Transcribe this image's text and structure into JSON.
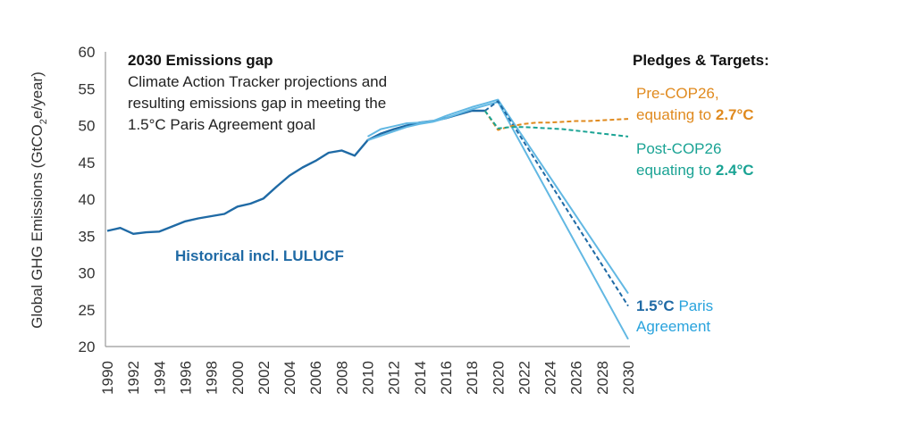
{
  "chart_data": {
    "type": "line",
    "title": "2030 Emissions gap",
    "subtitle": [
      "Climate Action Tracker projections and",
      "resulting emissions gap in meeting the",
      "1.5°C Paris Agreement goal"
    ],
    "ylabel": {
      "main": "Global GHG Emissions (GtCO",
      "sub": "2",
      "tail": "e/year)"
    },
    "xlim": [
      1990,
      2030
    ],
    "ylim": [
      20,
      60
    ],
    "x_ticks": [
      1990,
      1992,
      1994,
      1996,
      1998,
      2000,
      2002,
      2004,
      2006,
      2008,
      2010,
      2012,
      2014,
      2016,
      2018,
      2020,
      2022,
      2024,
      2026,
      2028,
      2030
    ],
    "y_ticks": [
      20,
      25,
      30,
      35,
      40,
      45,
      50,
      55,
      60
    ],
    "legend_header": "Pledges & Targets:",
    "colors": {
      "historical": "#1f6aa5",
      "paris": "#62b8e3",
      "paris_dashed": "#1f6aa5",
      "pre_cop26": "#e08a1e",
      "post_cop26": "#1aa394",
      "axis": "#999999"
    },
    "series": [
      {
        "key": "historical",
        "x": [
          1990,
          1991,
          1992,
          1993,
          1994,
          1995,
          1996,
          1997,
          1998,
          1999,
          2000,
          2001,
          2002,
          2003,
          2004,
          2005,
          2006,
          2007,
          2008,
          2009,
          2010,
          2011,
          2012,
          2013,
          2014,
          2015,
          2016,
          2017,
          2018,
          2019
        ],
        "y": [
          35.7,
          36.1,
          35.3,
          35.5,
          35.6,
          36.3,
          37.0,
          37.4,
          37.7,
          38.0,
          39.0,
          39.4,
          40.1,
          41.7,
          43.2,
          44.3,
          45.2,
          46.3,
          46.6,
          45.9,
          48.0,
          48.9,
          49.5,
          50.0,
          50.4,
          50.6,
          51.0,
          51.5,
          52.0,
          52.0
        ],
        "style": "solid"
      },
      {
        "key": "paris",
        "x": [
          2010,
          2011,
          2012,
          2013,
          2014,
          2015,
          2016,
          2017,
          2018,
          2019,
          2020,
          2030
        ],
        "y": [
          48.5,
          49.5,
          49.9,
          50.3,
          50.4,
          50.6,
          51.3,
          51.9,
          52.5,
          53.0,
          53.5,
          27.2
        ],
        "style": "solid"
      },
      {
        "key": "paris",
        "x": [
          2010,
          2011,
          2012,
          2013,
          2014,
          2015,
          2016,
          2017,
          2018,
          2019,
          2020,
          2030
        ],
        "y": [
          48.0,
          48.6,
          49.2,
          49.8,
          50.2,
          50.5,
          51.0,
          51.6,
          52.2,
          52.7,
          53.2,
          21.0
        ],
        "style": "solid"
      },
      {
        "key": "paris_dashed",
        "x": [
          2019,
          2020,
          2030
        ],
        "y": [
          52.0,
          53.3,
          25.5
        ],
        "style": "dashed"
      },
      {
        "key": "pre_cop26",
        "x": [
          2019,
          2020,
          2021,
          2022,
          2023,
          2024,
          2025,
          2026,
          2027,
          2028,
          2029,
          2030
        ],
        "y": [
          52.0,
          49.4,
          49.9,
          50.2,
          50.4,
          50.4,
          50.5,
          50.6,
          50.6,
          50.7,
          50.8,
          50.9
        ],
        "style": "dashed"
      },
      {
        "key": "post_cop26",
        "x": [
          2019,
          2020,
          2021,
          2022,
          2023,
          2024,
          2025,
          2026,
          2027,
          2028,
          2029,
          2030
        ],
        "y": [
          52.0,
          49.6,
          49.8,
          49.8,
          49.7,
          49.6,
          49.5,
          49.3,
          49.1,
          48.9,
          48.7,
          48.5
        ],
        "style": "dashed"
      }
    ],
    "annotations": {
      "historical": "Historical incl. LULUCF",
      "pre_cop26": {
        "line1": "Pre-COP26,",
        "line2_text": "equating to ",
        "line2_bold": "2.7°C"
      },
      "post_cop26": {
        "line1": "Post-COP26",
        "line2_text": "equating to ",
        "line2_bold": "2.4°C"
      },
      "paris": {
        "line1_bold": "1.5°C",
        "line1_text": " Paris",
        "line2": "Agreement"
      }
    },
    "grid": false
  }
}
